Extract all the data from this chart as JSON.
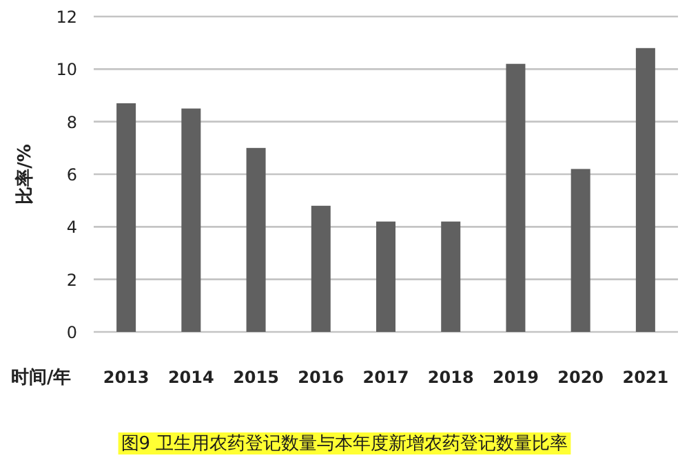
{
  "chart_data": {
    "type": "bar",
    "title": "图9  卫生用农药登记数量与本年度新增农药登记数量比率",
    "xlabel": "时间/年",
    "ylabel": "比率/%",
    "categories": [
      "2013",
      "2014",
      "2015",
      "2016",
      "2017",
      "2018",
      "2019",
      "2020",
      "2021"
    ],
    "values": [
      8.7,
      8.5,
      7.0,
      4.8,
      4.2,
      4.2,
      10.2,
      6.2,
      10.8
    ],
    "color": "#606060",
    "ylim": [
      0,
      12
    ],
    "yticks": [
      0,
      2,
      4,
      6,
      8,
      10,
      12
    ],
    "grid": "y"
  }
}
